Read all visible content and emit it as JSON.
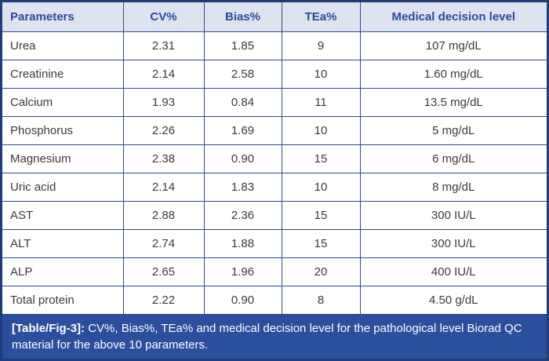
{
  "colors": {
    "header_bg": "#dde4f0",
    "header_text": "#2b4a9b",
    "border_color": "#2d4b8e",
    "outer_border": "#203d75",
    "caption_bg": "#2b4e9d",
    "caption_text": "#ffffff",
    "body_text": "#3b3b3c"
  },
  "table": {
    "columns": [
      "Parameters",
      "CV%",
      "Bias%",
      "TEa%",
      "Medical decision level"
    ],
    "cell_names": [
      "parameter-cell",
      "cv-cell",
      "bias-cell",
      "tea-cell",
      "mdl-cell"
    ],
    "rows": [
      [
        "Urea",
        "2.31",
        "1.85",
        "9",
        "107 mg/dL"
      ],
      [
        "Creatinine",
        "2.14",
        "2.58",
        "10",
        "1.60 mg/dL"
      ],
      [
        "Calcium",
        "1.93",
        "0.84",
        "11",
        "13.5 mg/dL"
      ],
      [
        "Phosphorus",
        "2.26",
        "1.69",
        "10",
        "5 mg/dL"
      ],
      [
        "Magnesium",
        "2.38",
        "0.90",
        "15",
        "6 mg/dL"
      ],
      [
        "Uric acid",
        "2.14",
        "1.83",
        "10",
        "8 mg/dL"
      ],
      [
        "AST",
        "2.88",
        "2.36",
        "15",
        "300 IU/L"
      ],
      [
        "ALT",
        "2.74",
        "1.88",
        "15",
        "300 IU/L"
      ],
      [
        "ALP",
        "2.65",
        "1.96",
        "20",
        "400 IU/L"
      ],
      [
        "Total protein",
        "2.22",
        "0.90",
        "8",
        "4.50 g/dL"
      ]
    ]
  },
  "caption": {
    "label": "[Table/Fig-3]:",
    "text": " CV%, Bias%, TEa% and medical decision level for the pathological level Biorad QC material for the above 10 parameters."
  }
}
